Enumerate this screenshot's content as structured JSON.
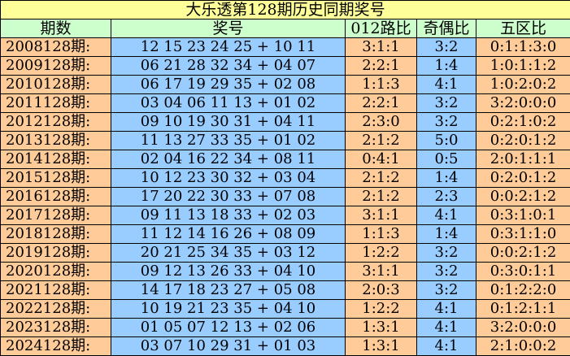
{
  "title": "大乐透第128期历史同期奖号",
  "headers": [
    "期数",
    "奖号",
    "012路比",
    "奇偶比",
    "五区比"
  ],
  "colors": {
    "title_bg": "#ffff99",
    "header_bg": "#ccffcc",
    "orange": "#ffcc99",
    "blue": "#99ccff"
  },
  "rows": [
    {
      "period": "2008128期:",
      "numbers": "12 15 23 24 25 + 10 11",
      "road": "3:1:1",
      "odd_even": "3:2",
      "zones": "0:1:1:3:0"
    },
    {
      "period": "2009128期:",
      "numbers": "06 21 28 32 34 + 04 07",
      "road": "2:2:1",
      "odd_even": "1:4",
      "zones": "1:0:1:1:2"
    },
    {
      "period": "2010128期:",
      "numbers": "06 17 19 29 35 + 02 08",
      "road": "1:1:3",
      "odd_even": "4:1",
      "zones": "1:0:2:0:2"
    },
    {
      "period": "2011128期:",
      "numbers": "03 04 06 11 13 + 01 02",
      "road": "2:2:1",
      "odd_even": "3:2",
      "zones": "3:2:0:0:0"
    },
    {
      "period": "2012128期:",
      "numbers": "09 10 19 30 31 + 04 11",
      "road": "2:3:0",
      "odd_even": "3:2",
      "zones": "0:2:1:0:2"
    },
    {
      "period": "2013128期:",
      "numbers": "11 13 27 33 35 + 01 02",
      "road": "2:1:2",
      "odd_even": "5:0",
      "zones": "0:2:0:1:2"
    },
    {
      "period": "2014128期:",
      "numbers": "02 04 16 22 34 + 08 11",
      "road": "0:4:1",
      "odd_even": "0:5",
      "zones": "2:0:1:1:1"
    },
    {
      "period": "2015128期:",
      "numbers": "10 12 23 30 32 + 03 04",
      "road": "2:1:2",
      "odd_even": "1:4",
      "zones": "0:2:0:1:2"
    },
    {
      "period": "2016128期:",
      "numbers": "17 20 22 30 33 + 07 08",
      "road": "2:1:2",
      "odd_even": "2:3",
      "zones": "0:0:2:1:2"
    },
    {
      "period": "2017128期:",
      "numbers": "09 11 13 18 33 + 02 03",
      "road": "3:1:1",
      "odd_even": "4:1",
      "zones": "0:3:1:0:1"
    },
    {
      "period": "2018128期:",
      "numbers": "11 12 14 16 26 + 08 09",
      "road": "1:1:3",
      "odd_even": "1:4",
      "zones": "0:3:1:1:0"
    },
    {
      "period": "2019128期:",
      "numbers": "20 21 25 34 35 + 03 12",
      "road": "1:2:2",
      "odd_even": "3:2",
      "zones": "0:0:2:1:2"
    },
    {
      "period": "2020128期:",
      "numbers": "09 12 13 26 33 + 04 10",
      "road": "3:1:1",
      "odd_even": "3:2",
      "zones": "0:3:0:1:1"
    },
    {
      "period": "2021128期:",
      "numbers": "14 17 18 23 27 + 05 08",
      "road": "2:0:3",
      "odd_even": "3:2",
      "zones": "0:1:2:2:0"
    },
    {
      "period": "2022128期:",
      "numbers": "10 19 21 23 35 + 04 10",
      "road": "1:2:2",
      "odd_even": "4:1",
      "zones": "0:1:2:1:1"
    },
    {
      "period": "2023128期:",
      "numbers": "01 05 07 12 13 + 02 06",
      "road": "1:3:1",
      "odd_even": "4:1",
      "zones": "3:2:0:0:0"
    },
    {
      "period": "2024128期:",
      "numbers": "03 07 10 29 31 + 01 03",
      "road": "1:3:1",
      "odd_even": "4:1",
      "zones": "2:1:0:0:2"
    }
  ]
}
